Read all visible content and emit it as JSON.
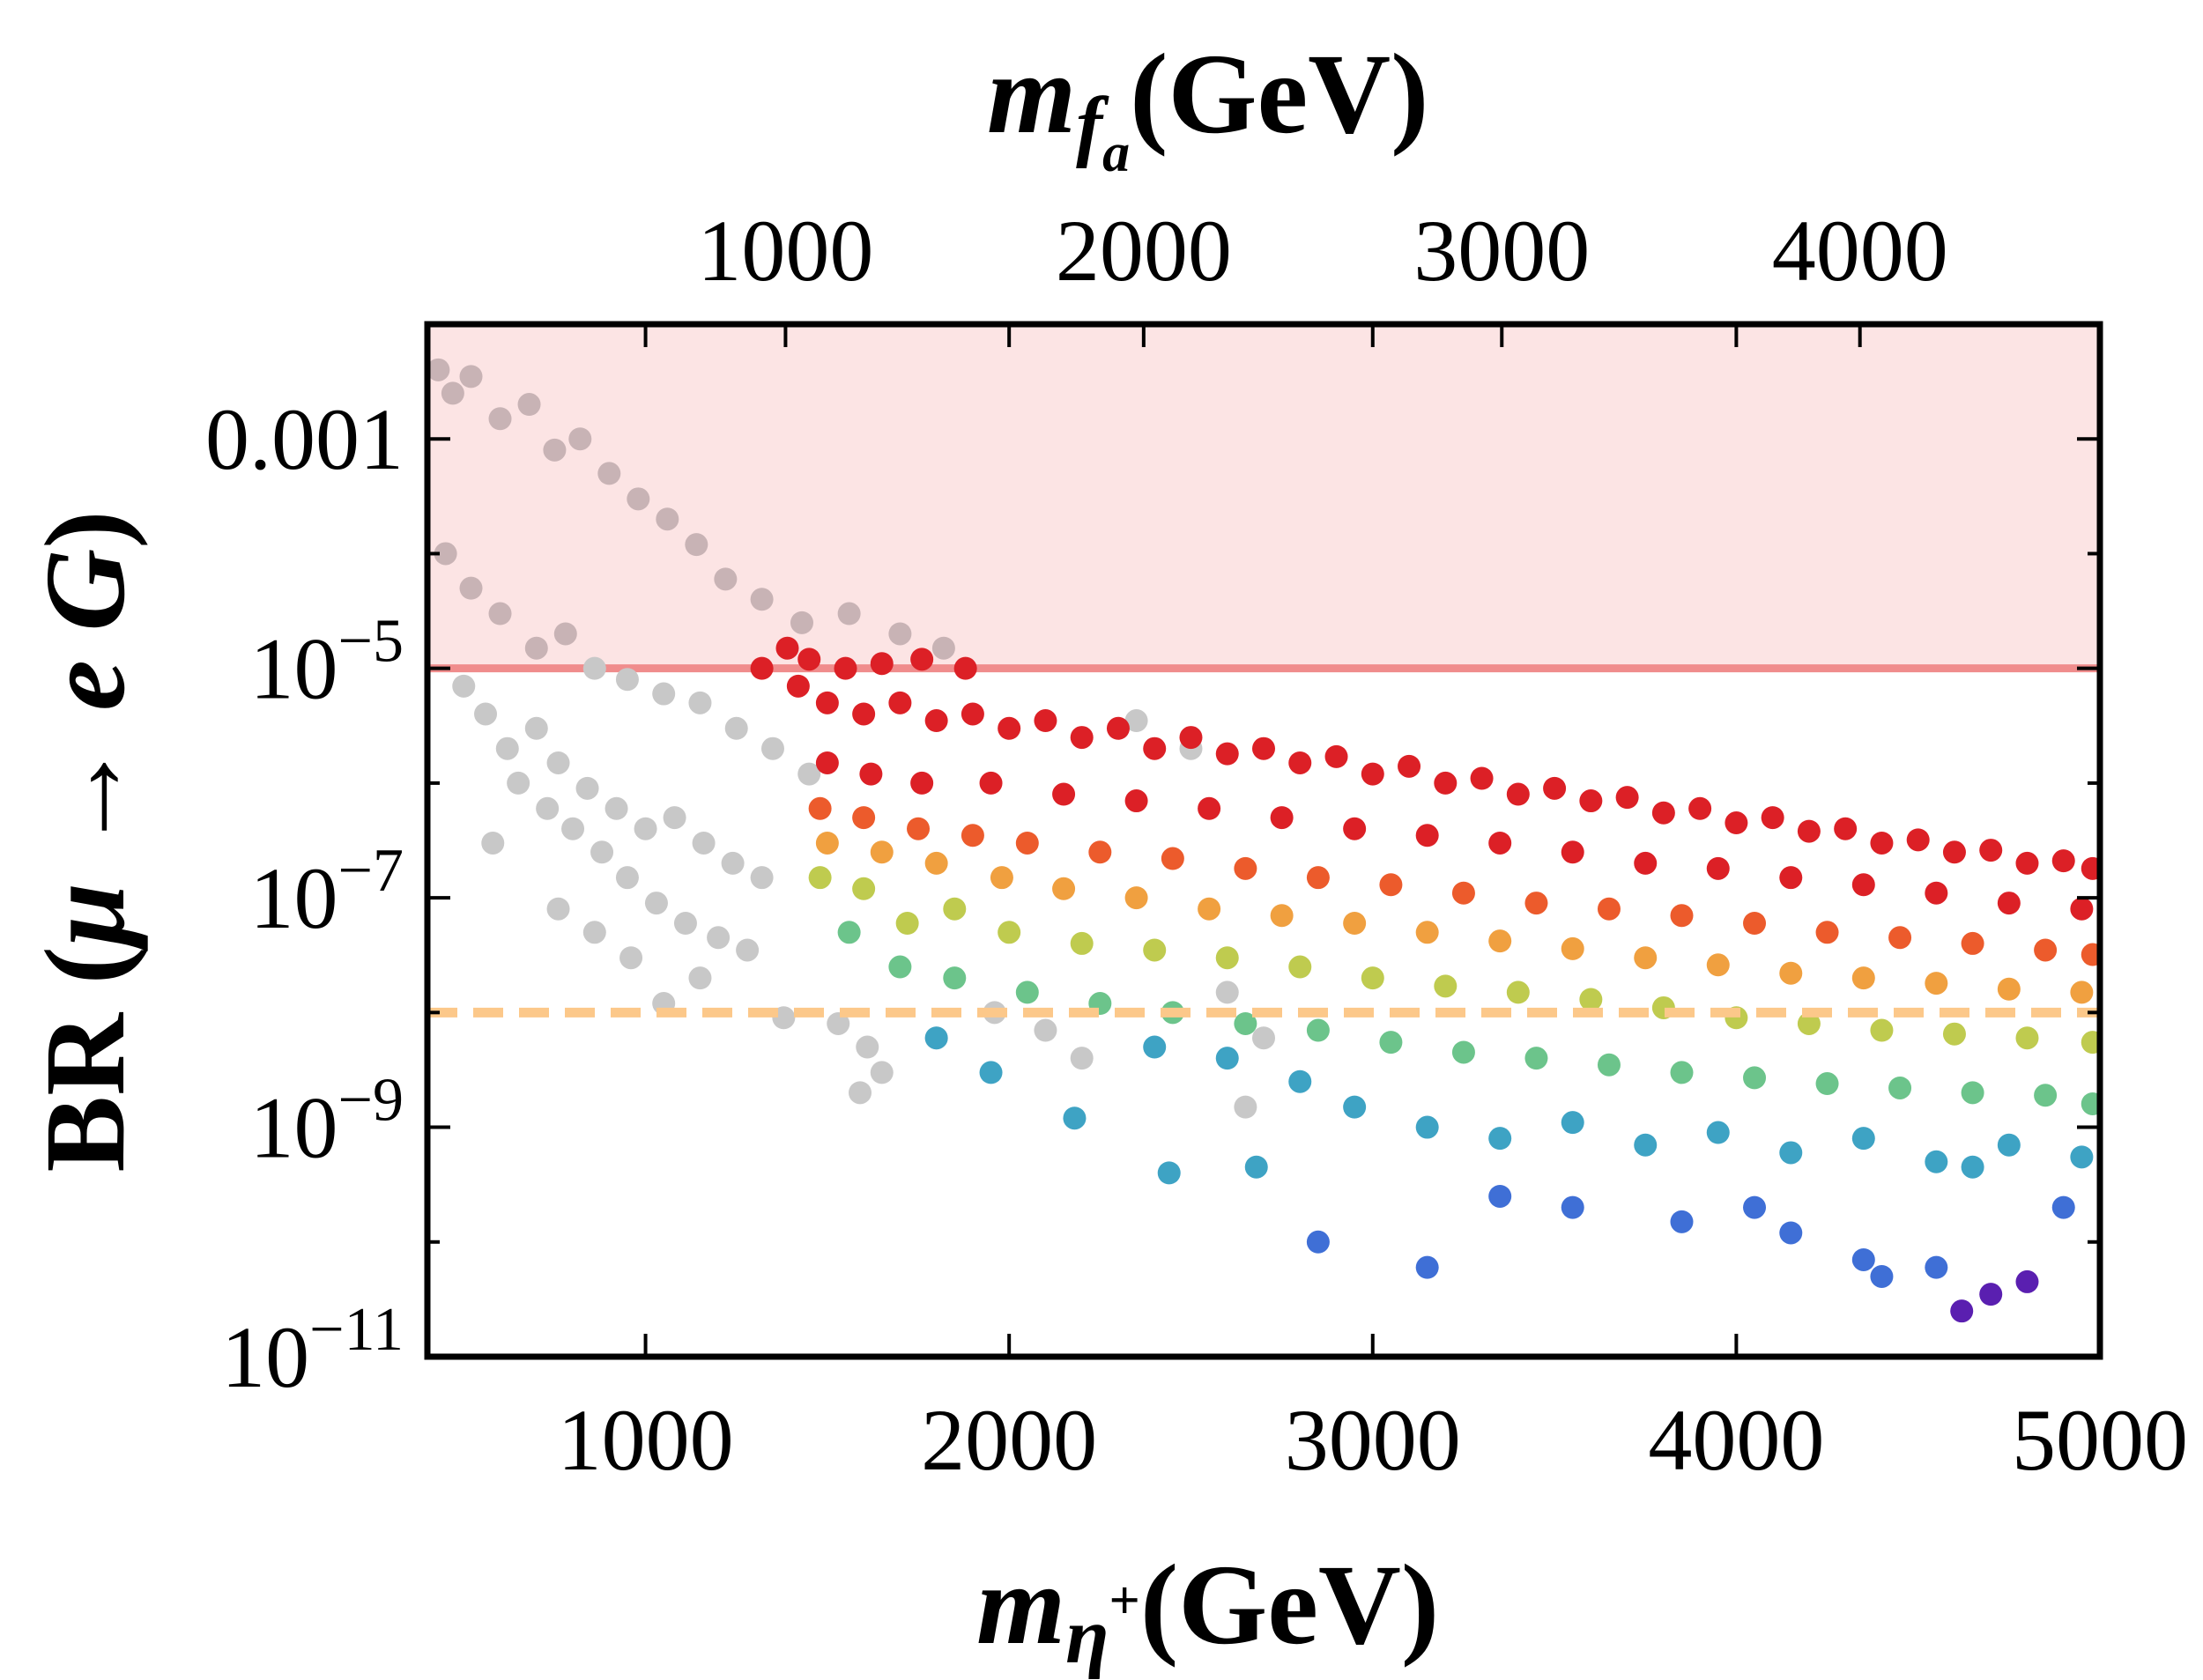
{
  "chart_data": {
    "type": "scatter",
    "title": "",
    "xlabel": {
      "main": "m",
      "sub": "η",
      "sup": "+",
      "unit": "(GeV)"
    },
    "x2label": {
      "main": "m",
      "sub": "f",
      "subsub": "a",
      "unit": "(GeV)"
    },
    "ylabel": {
      "prefix": "BR (",
      "mu": "μ",
      "arrow": " → ",
      "e": "e",
      "g": "G",
      "suffix": ")"
    },
    "xlim": [
      400,
      5000
    ],
    "x2lim": [
      0,
      4670
    ],
    "ylim_log10": [
      -11,
      -2
    ],
    "yscale": "log",
    "x_ticks": [
      {
        "value": 1000,
        "label": "1000"
      },
      {
        "value": 2000,
        "label": "2000"
      },
      {
        "value": 3000,
        "label": "3000"
      },
      {
        "value": 4000,
        "label": "4000"
      },
      {
        "value": 5000,
        "label": "5000"
      }
    ],
    "x2_ticks": [
      {
        "value": 1000,
        "label": "1000"
      },
      {
        "value": 2000,
        "label": "2000"
      },
      {
        "value": 3000,
        "label": "3000"
      },
      {
        "value": 4000,
        "label": "4000"
      }
    ],
    "y_ticks": [
      {
        "exp": -3,
        "label": "0.001"
      },
      {
        "exp": -5,
        "label": "10",
        "sup": "−5"
      },
      {
        "exp": -7,
        "label": "10",
        "sup": "−7"
      },
      {
        "exp": -9,
        "label": "10",
        "sup": "−9"
      },
      {
        "exp": -11,
        "label": "10",
        "sup": "−11"
      }
    ],
    "excluded_region": {
      "y_from": 1e-05,
      "y_to": 0.01,
      "color": "#fce4e4",
      "line_color": "#f08c8c"
    },
    "future_limit": {
      "y": 1e-08,
      "color": "#fcc88a",
      "style": "dashed"
    },
    "colors": {
      "excluded_points": "#c8c8c8",
      "excluded_overlap": "#c8b3b5",
      "scale": [
        "#5a1fb0",
        "#3f6fd6",
        "#3ea3c4",
        "#6cc48b",
        "#bfcb4f",
        "#f0a040",
        "#ec5b2c",
        "#dc2026"
      ]
    },
    "gray_points": [
      [
        430,
        0.004
      ],
      [
        470,
        0.0025
      ],
      [
        520,
        0.0035
      ],
      [
        600,
        0.0015
      ],
      [
        680,
        0.002
      ],
      [
        750,
        0.0008
      ],
      [
        820,
        0.001
      ],
      [
        900,
        0.0005
      ],
      [
        980,
        0.0003
      ],
      [
        1060,
        0.0002
      ],
      [
        1140,
        0.00012
      ],
      [
        1220,
        6e-05
      ],
      [
        1320,
        4e-05
      ],
      [
        1430,
        2.5e-05
      ],
      [
        1560,
        3e-05
      ],
      [
        1700,
        2e-05
      ],
      [
        1820,
        1.5e-05
      ],
      [
        450,
        0.0001
      ],
      [
        520,
        5e-05
      ],
      [
        600,
        3e-05
      ],
      [
        700,
        1.5e-05
      ],
      [
        780,
        2e-05
      ],
      [
        860,
        1e-05
      ],
      [
        950,
        8e-06
      ],
      [
        1050,
        6e-06
      ],
      [
        1150,
        5e-06
      ],
      [
        1250,
        3e-06
      ],
      [
        1350,
        2e-06
      ],
      [
        1450,
        1.2e-06
      ],
      [
        500,
        7e-06
      ],
      [
        560,
        4e-06
      ],
      [
        620,
        2e-06
      ],
      [
        700,
        3e-06
      ],
      [
        760,
        1.5e-06
      ],
      [
        840,
        9e-07
      ],
      [
        920,
        6e-07
      ],
      [
        1000,
        4e-07
      ],
      [
        1080,
        5e-07
      ],
      [
        1160,
        3e-07
      ],
      [
        1240,
        2e-07
      ],
      [
        1320,
        1.5e-07
      ],
      [
        580,
        3e-07
      ],
      [
        650,
        1e-06
      ],
      [
        730,
        6e-07
      ],
      [
        800,
        4e-07
      ],
      [
        880,
        2.5e-07
      ],
      [
        950,
        1.5e-07
      ],
      [
        1030,
        9e-08
      ],
      [
        1110,
        6e-08
      ],
      [
        1200,
        4.5e-08
      ],
      [
        1280,
        3.5e-08
      ],
      [
        760,
        8e-08
      ],
      [
        860,
        5e-08
      ],
      [
        960,
        3e-08
      ],
      [
        1050,
        1.2e-08
      ],
      [
        1150,
        2e-08
      ],
      [
        1380,
        9e-09
      ],
      [
        1530,
        8e-09
      ],
      [
        1610,
        5e-09
      ],
      [
        1590,
        2e-09
      ],
      [
        1650,
        3e-09
      ],
      [
        1800,
        6e-09
      ],
      [
        1960,
        1e-08
      ],
      [
        2100,
        7e-09
      ],
      [
        2200,
        4e-09
      ],
      [
        2350,
        3.5e-06
      ],
      [
        2500,
        2e-06
      ],
      [
        2600,
        1.5e-08
      ],
      [
        2700,
        6e-09
      ],
      [
        2650,
        1.5e-09
      ]
    ],
    "colored_points": [
      [
        1320,
        1e-05,
        7
      ],
      [
        1390,
        1.5e-05,
        7
      ],
      [
        1450,
        1.2e-05,
        7
      ],
      [
        1550,
        1e-05,
        7
      ],
      [
        1650,
        1.1e-05,
        7
      ],
      [
        1760,
        1.2e-05,
        7
      ],
      [
        1880,
        1e-05,
        7
      ],
      [
        1420,
        7e-06,
        7
      ],
      [
        1500,
        5e-06,
        7
      ],
      [
        1600,
        4e-06,
        7
      ],
      [
        1700,
        5e-06,
        7
      ],
      [
        1800,
        3.5e-06,
        7
      ],
      [
        1900,
        4e-06,
        7
      ],
      [
        2000,
        3e-06,
        7
      ],
      [
        2100,
        3.5e-06,
        7
      ],
      [
        2200,
        2.5e-06,
        7
      ],
      [
        2300,
        3e-06,
        7
      ],
      [
        2400,
        2e-06,
        7
      ],
      [
        2500,
        2.5e-06,
        7
      ],
      [
        2600,
        1.8e-06,
        7
      ],
      [
        2700,
        2e-06,
        7
      ],
      [
        2800,
        1.5e-06,
        7
      ],
      [
        2900,
        1.7e-06,
        7
      ],
      [
        3000,
        1.2e-06,
        7
      ],
      [
        3100,
        1.4e-06,
        7
      ],
      [
        3200,
        1e-06,
        7
      ],
      [
        3300,
        1.1e-06,
        7
      ],
      [
        3400,
        8e-07,
        7
      ],
      [
        3500,
        9e-07,
        7
      ],
      [
        3600,
        7e-07,
        7
      ],
      [
        3700,
        7.5e-07,
        7
      ],
      [
        3800,
        5.5e-07,
        7
      ],
      [
        3900,
        6e-07,
        7
      ],
      [
        4000,
        4.5e-07,
        7
      ],
      [
        4100,
        5e-07,
        7
      ],
      [
        4200,
        3.8e-07,
        7
      ],
      [
        4300,
        4e-07,
        7
      ],
      [
        4400,
        3e-07,
        7
      ],
      [
        4500,
        3.2e-07,
        7
      ],
      [
        4600,
        2.5e-07,
        7
      ],
      [
        4700,
        2.6e-07,
        7
      ],
      [
        4800,
        2e-07,
        7
      ],
      [
        4900,
        2.1e-07,
        7
      ],
      [
        4980,
        1.8e-07,
        7
      ],
      [
        1500,
        1.5e-06,
        7
      ],
      [
        1620,
        1.2e-06,
        7
      ],
      [
        1760,
        1e-06,
        7
      ],
      [
        1950,
        1e-06,
        7
      ],
      [
        2150,
        8e-07,
        7
      ],
      [
        2350,
        7e-07,
        7
      ],
      [
        2550,
        6e-07,
        7
      ],
      [
        2750,
        5e-07,
        7
      ],
      [
        2950,
        4e-07,
        7
      ],
      [
        3150,
        3.5e-07,
        7
      ],
      [
        3350,
        3e-07,
        7
      ],
      [
        3550,
        2.5e-07,
        7
      ],
      [
        3750,
        2e-07,
        7
      ],
      [
        3950,
        1.8e-07,
        7
      ],
      [
        4150,
        1.5e-07,
        7
      ],
      [
        4350,
        1.3e-07,
        7
      ],
      [
        4550,
        1.1e-07,
        7
      ],
      [
        4750,
        9e-08,
        7
      ],
      [
        4950,
        8e-08,
        7
      ],
      [
        1480,
        6e-07,
        6
      ],
      [
        1600,
        5e-07,
        6
      ],
      [
        1750,
        4e-07,
        6
      ],
      [
        1900,
        3.5e-07,
        6
      ],
      [
        2050,
        3e-07,
        6
      ],
      [
        2250,
        2.5e-07,
        6
      ],
      [
        2450,
        2.2e-07,
        6
      ],
      [
        2650,
        1.8e-07,
        6
      ],
      [
        2850,
        1.5e-07,
        6
      ],
      [
        3050,
        1.3e-07,
        6
      ],
      [
        3250,
        1.1e-07,
        6
      ],
      [
        3450,
        9e-08,
        6
      ],
      [
        3650,
        8e-08,
        6
      ],
      [
        3850,
        7e-08,
        6
      ],
      [
        4050,
        6e-08,
        6
      ],
      [
        4250,
        5e-08,
        6
      ],
      [
        4450,
        4.5e-08,
        6
      ],
      [
        4650,
        4e-08,
        6
      ],
      [
        4850,
        3.5e-08,
        6
      ],
      [
        4980,
        3.2e-08,
        6
      ],
      [
        1500,
        3e-07,
        5
      ],
      [
        1650,
        2.5e-07,
        5
      ],
      [
        1800,
        2e-07,
        5
      ],
      [
        1980,
        1.5e-07,
        5
      ],
      [
        2150,
        1.2e-07,
        5
      ],
      [
        2350,
        1e-07,
        5
      ],
      [
        2550,
        8e-08,
        5
      ],
      [
        2750,
        7e-08,
        5
      ],
      [
        2950,
        6e-08,
        5
      ],
      [
        3150,
        5e-08,
        5
      ],
      [
        3350,
        4.2e-08,
        5
      ],
      [
        3550,
        3.6e-08,
        5
      ],
      [
        3750,
        3e-08,
        5
      ],
      [
        3950,
        2.6e-08,
        5
      ],
      [
        4150,
        2.2e-08,
        5
      ],
      [
        4350,
        2e-08,
        5
      ],
      [
        4550,
        1.8e-08,
        5
      ],
      [
        4750,
        1.6e-08,
        5
      ],
      [
        4950,
        1.5e-08,
        5
      ],
      [
        1480,
        1.5e-07,
        4
      ],
      [
        1600,
        1.2e-07,
        4
      ],
      [
        1720,
        6e-08,
        4
      ],
      [
        1850,
        8e-08,
        4
      ],
      [
        2000,
        5e-08,
        4
      ],
      [
        2200,
        4e-08,
        4
      ],
      [
        2400,
        3.5e-08,
        4
      ],
      [
        2600,
        3e-08,
        4
      ],
      [
        2800,
        2.5e-08,
        4
      ],
      [
        3000,
        2e-08,
        4
      ],
      [
        3200,
        1.7e-08,
        4
      ],
      [
        3400,
        1.5e-08,
        4
      ],
      [
        3600,
        1.3e-08,
        4
      ],
      [
        3800,
        1.1e-08,
        4
      ],
      [
        4000,
        9e-09,
        4
      ],
      [
        4200,
        8e-09,
        4
      ],
      [
        4400,
        7e-09,
        4
      ],
      [
        4600,
        6.5e-09,
        4
      ],
      [
        4800,
        6e-09,
        4
      ],
      [
        4980,
        5.5e-09,
        4
      ],
      [
        1560,
        5e-08,
        3
      ],
      [
        1700,
        2.5e-08,
        3
      ],
      [
        1850,
        2e-08,
        3
      ],
      [
        2050,
        1.5e-08,
        3
      ],
      [
        2250,
        1.2e-08,
        3
      ],
      [
        2450,
        1e-08,
        3
      ],
      [
        2650,
        8e-09,
        3
      ],
      [
        2850,
        7e-09,
        3
      ],
      [
        3050,
        5.5e-09,
        3
      ],
      [
        3250,
        4.5e-09,
        3
      ],
      [
        3450,
        4e-09,
        3
      ],
      [
        3650,
        3.5e-09,
        3
      ],
      [
        3850,
        3e-09,
        3
      ],
      [
        4050,
        2.7e-09,
        3
      ],
      [
        4250,
        2.4e-09,
        3
      ],
      [
        4450,
        2.2e-09,
        3
      ],
      [
        4650,
        2e-09,
        3
      ],
      [
        4850,
        1.9e-09,
        3
      ],
      [
        4980,
        1.6e-09,
        3
      ],
      [
        1800,
        6e-09,
        2
      ],
      [
        1950,
        3e-09,
        2
      ],
      [
        2180,
        1.2e-09,
        2
      ],
      [
        2400,
        5e-09,
        2
      ],
      [
        2600,
        4e-09,
        2
      ],
      [
        2800,
        2.5e-09,
        2
      ],
      [
        2950,
        1.5e-09,
        2
      ],
      [
        3150,
        1e-09,
        2
      ],
      [
        3350,
        8e-10,
        2
      ],
      [
        3550,
        1.1e-09,
        2
      ],
      [
        3750,
        7e-10,
        2
      ],
      [
        3950,
        9e-10,
        2
      ],
      [
        4150,
        6e-10,
        2
      ],
      [
        4350,
        8e-10,
        2
      ],
      [
        4550,
        5e-10,
        2
      ],
      [
        4750,
        7e-10,
        2
      ],
      [
        4950,
        5.5e-10,
        2
      ],
      [
        2440,
        4e-10,
        2
      ],
      [
        2680,
        4.5e-10,
        2
      ],
      [
        4650,
        4.5e-10,
        2
      ],
      [
        2850,
        1e-10,
        1
      ],
      [
        3150,
        6e-11,
        1
      ],
      [
        3350,
        2.5e-10,
        1
      ],
      [
        3550,
        2e-10,
        1
      ],
      [
        3850,
        1.5e-10,
        1
      ],
      [
        4050,
        2e-10,
        1
      ],
      [
        4150,
        1.2e-10,
        1
      ],
      [
        4350,
        7e-11,
        1
      ],
      [
        4400,
        5e-11,
        1
      ],
      [
        4550,
        6e-11,
        1
      ],
      [
        4700,
        3.5e-11,
        0
      ],
      [
        4800,
        4.5e-11,
        0
      ],
      [
        4900,
        2e-10,
        1
      ],
      [
        4620,
        2.5e-11,
        0
      ]
    ]
  }
}
